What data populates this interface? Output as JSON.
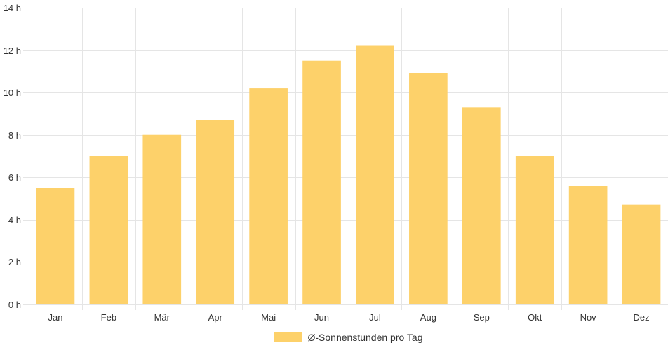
{
  "chart_data": {
    "type": "bar",
    "categories": [
      "Jan",
      "Feb",
      "Mär",
      "Apr",
      "Mai",
      "Jun",
      "Jul",
      "Aug",
      "Sep",
      "Okt",
      "Nov",
      "Dez"
    ],
    "series": [
      {
        "name": "Ø-Sonnenstunden pro Tag",
        "values": [
          5.5,
          7.0,
          8.0,
          8.7,
          10.2,
          11.5,
          12.2,
          10.9,
          9.3,
          7.0,
          5.6,
          4.7
        ],
        "color": "#fdd16a"
      }
    ],
    "y_ticks": [
      {
        "value": 0,
        "label": "0 h"
      },
      {
        "value": 2,
        "label": "2 h"
      },
      {
        "value": 4,
        "label": "4 h"
      },
      {
        "value": 6,
        "label": "6 h"
      },
      {
        "value": 8,
        "label": "8 h"
      },
      {
        "value": 10,
        "label": "10 h"
      },
      {
        "value": 12,
        "label": "12 h"
      },
      {
        "value": 14,
        "label": "14 h"
      }
    ],
    "ylim": [
      0,
      14
    ],
    "grid": true,
    "legend_position": "bottom",
    "grid_color": "#e5e5e5"
  }
}
